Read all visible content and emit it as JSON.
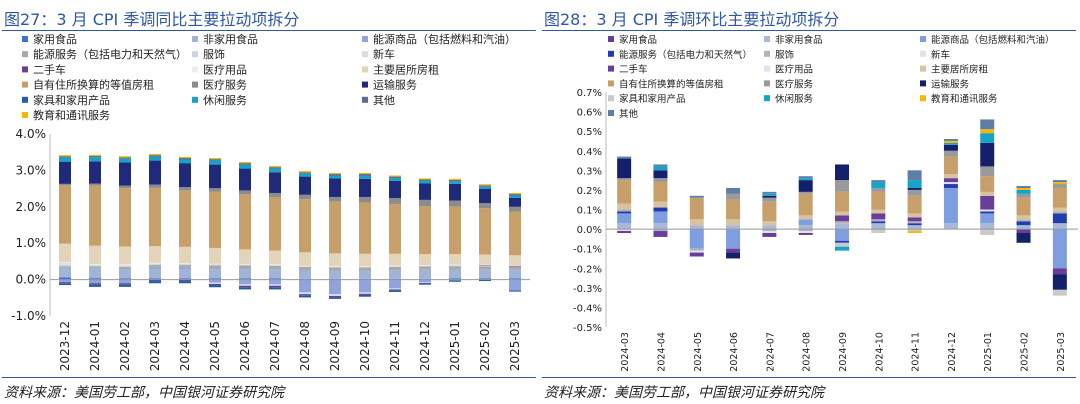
{
  "panels": [
    {
      "title": "图27：3 月 CPI 季调同比主要拉动项拆分",
      "source": "资料来源：美国劳工部，中国银河证券研究院"
    },
    {
      "title": "图28：3 月 CPI 季调环比主要拉动项拆分",
      "source": "资料来源：美国劳工部，中国银河证券研究院"
    }
  ],
  "chart_data": [
    {
      "type": "bar",
      "stacked": true,
      "title": "图27：3 月 CPI 季调同比主要拉动项拆分",
      "ylim": [
        -1.0,
        4.0
      ],
      "yticks": [
        "-1.0%",
        "0.0%",
        "1.0%",
        "2.0%",
        "3.0%",
        "4.0%"
      ],
      "legend_columns": 3,
      "categories": [
        "2023-12",
        "2024-01",
        "2024-02",
        "2024-03",
        "2024-04",
        "2024-05",
        "2024-06",
        "2024-07",
        "2024-08",
        "2024-09",
        "2024-10",
        "2024-11",
        "2024-12",
        "2025-01",
        "2025-02",
        "2025-03"
      ],
      "series": [
        {
          "name": "家用食品",
          "color": "#3a70d8",
          "values": [
            0.06,
            0.04,
            0.03,
            0.03,
            0.03,
            0.03,
            0.03,
            0.03,
            0.02,
            0.02,
            0.02,
            0.02,
            0.02,
            0.03,
            0.03,
            0.03
          ]
        },
        {
          "name": "非家用食品",
          "color": "#9fb4d7",
          "values": [
            0.27,
            0.27,
            0.26,
            0.25,
            0.25,
            0.26,
            0.26,
            0.25,
            0.23,
            0.23,
            0.23,
            0.24,
            0.25,
            0.24,
            0.24,
            0.24
          ]
        },
        {
          "name": "能源商品（包括燃料和汽油）",
          "color": "#8fa3de",
          "values": [
            -0.07,
            -0.1,
            -0.1,
            0.05,
            0.04,
            -0.08,
            -0.13,
            -0.13,
            -0.35,
            -0.4,
            -0.35,
            -0.24,
            -0.07,
            0.01,
            0.0,
            -0.3
          ]
        },
        {
          "name": "能源服务（包括电力和天然气）",
          "color": "#a9a9a9",
          "values": [
            0.04,
            0.05,
            0.06,
            0.07,
            0.08,
            0.1,
            0.1,
            0.1,
            0.1,
            0.09,
            0.09,
            0.09,
            0.09,
            0.09,
            0.09,
            0.08
          ]
        },
        {
          "name": "服饰",
          "color": "#c7d7eb",
          "values": [
            0.04,
            0.03,
            0.03,
            0.03,
            0.03,
            0.03,
            0.02,
            0.02,
            0.01,
            0.01,
            0.01,
            0.02,
            0.02,
            0.02,
            0.02,
            0.01
          ]
        },
        {
          "name": "新车",
          "color": "#dcdcdc",
          "values": [
            0.05,
            0.02,
            0.02,
            0.01,
            0.0,
            -0.04,
            -0.04,
            -0.04,
            -0.05,
            -0.05,
            -0.04,
            -0.03,
            -0.02,
            -0.02,
            -0.01,
            0.0
          ]
        },
        {
          "name": "二手车",
          "color": "#6a3d9a",
          "values": [
            -0.03,
            -0.04,
            -0.04,
            -0.04,
            -0.04,
            -0.03,
            -0.04,
            -0.04,
            -0.03,
            -0.03,
            -0.03,
            -0.02,
            -0.01,
            0.0,
            0.01,
            0.02
          ]
        },
        {
          "name": "医疗用品",
          "color": "#ececec",
          "values": [
            0.02,
            0.02,
            0.02,
            0.02,
            0.02,
            0.02,
            0.02,
            0.02,
            0.02,
            0.02,
            0.02,
            0.02,
            0.02,
            0.02,
            0.02,
            0.02
          ]
        },
        {
          "name": "主要居所房租",
          "color": "#e3d3b8",
          "values": [
            0.51,
            0.5,
            0.49,
            0.46,
            0.45,
            0.43,
            0.4,
            0.38,
            0.37,
            0.35,
            0.34,
            0.32,
            0.3,
            0.29,
            0.28,
            0.27
          ]
        },
        {
          "name": "自有住所换算的等值房租",
          "color": "#c79f6b",
          "values": [
            1.6,
            1.65,
            1.6,
            1.6,
            1.55,
            1.55,
            1.52,
            1.47,
            1.46,
            1.42,
            1.41,
            1.36,
            1.32,
            1.31,
            1.27,
            1.2
          ]
        },
        {
          "name": "医疗服务",
          "color": "#8c8c8c",
          "values": [
            0.04,
            0.06,
            0.07,
            0.09,
            0.09,
            0.09,
            0.1,
            0.11,
            0.12,
            0.13,
            0.15,
            0.17,
            0.17,
            0.16,
            0.14,
            0.13
          ]
        },
        {
          "name": "运输服务",
          "color": "#1f2a7a",
          "values": [
            0.61,
            0.61,
            0.64,
            0.66,
            0.66,
            0.65,
            0.6,
            0.57,
            0.5,
            0.51,
            0.5,
            0.47,
            0.45,
            0.46,
            0.39,
            0.25
          ]
        },
        {
          "name": "家具和家用产品",
          "color": "#1f5fa6",
          "values": [
            -0.05,
            -0.06,
            -0.06,
            -0.06,
            -0.06,
            -0.06,
            -0.06,
            -0.06,
            -0.06,
            -0.05,
            -0.05,
            -0.05,
            -0.04,
            -0.04,
            -0.03,
            -0.03
          ]
        },
        {
          "name": "休闲服务",
          "color": "#17a2c7",
          "values": [
            0.11,
            0.11,
            0.1,
            0.11,
            0.1,
            0.11,
            0.11,
            0.1,
            0.08,
            0.08,
            0.09,
            0.08,
            0.07,
            0.07,
            0.06,
            0.06
          ]
        },
        {
          "name": "其他",
          "color": "#5a6f90",
          "values": [
            0.04,
            0.04,
            0.04,
            0.04,
            0.04,
            0.04,
            0.04,
            0.04,
            0.04,
            0.04,
            0.04,
            0.04,
            0.04,
            0.04,
            0.04,
            0.04
          ]
        },
        {
          "name": "教育和通讯服务",
          "color": "#f5b800",
          "values": [
            0.03,
            0.03,
            0.03,
            0.03,
            0.03,
            0.03,
            0.03,
            0.03,
            0.03,
            0.03,
            0.03,
            0.03,
            0.03,
            0.03,
            0.03,
            0.03
          ]
        }
      ]
    },
    {
      "type": "bar",
      "stacked": true,
      "title": "图28：3 月 CPI 季调环比主要拉动项拆分",
      "ylim": [
        -0.5,
        0.7
      ],
      "yticks": [
        "-0.5%",
        "-0.4%",
        "-0.3%",
        "-0.2%",
        "-0.1%",
        "0.0%",
        "0.1%",
        "0.2%",
        "0.3%",
        "0.4%",
        "0.5%",
        "0.6%",
        "0.7%"
      ],
      "legend_columns": 3,
      "categories": [
        "2024-03",
        "2024-04",
        "2024-05",
        "2024-06",
        "2024-07",
        "2024-08",
        "2024-09",
        "2024-10",
        "2024-11",
        "2024-12",
        "2025-01",
        "2025-02",
        "2025-03"
      ],
      "series": [
        {
          "name": "家用食品",
          "color": "#6a3d9a",
          "values": [
            0.0,
            0.0,
            0.0,
            0.0,
            0.0,
            0.0,
            0.0,
            0.0,
            0.0,
            0.0,
            0.0,
            0.0,
            0.0
          ]
        },
        {
          "name": "非家用食品",
          "color": "#a9b8d6",
          "values": [
            0.03,
            0.03,
            0.02,
            0.02,
            0.02,
            0.02,
            0.03,
            0.03,
            0.02,
            0.03,
            0.03,
            0.02,
            0.03
          ]
        },
        {
          "name": "能源商品（包括燃料和汽油）",
          "color": "#7f9ee0",
          "values": [
            0.05,
            0.06,
            -0.1,
            -0.1,
            0.0,
            0.03,
            -0.06,
            0.0,
            0.0,
            0.18,
            0.05,
            0.0,
            -0.2
          ]
        },
        {
          "name": "能源服务（包括电力和天然气）",
          "color": "#1f3fb0",
          "values": [
            0.01,
            0.02,
            0.0,
            0.0,
            0.0,
            0.0,
            -0.01,
            0.01,
            0.01,
            0.02,
            0.01,
            0.02,
            0.05
          ]
        },
        {
          "name": "服饰",
          "color": "#b3b3b3",
          "values": [
            0.01,
            -0.01,
            -0.01,
            0.0,
            -0.01,
            -0.01,
            0.01,
            0.01,
            0.01,
            0.0,
            0.0,
            0.01,
            0.01
          ]
        },
        {
          "name": "新车",
          "color": "#e2e2e2",
          "values": [
            -0.01,
            0.0,
            -0.01,
            0.0,
            -0.01,
            -0.01,
            0.0,
            0.0,
            0.0,
            0.01,
            0.01,
            0.0,
            0.0
          ]
        },
        {
          "name": "二手车",
          "color": "#6a3d9a",
          "values": [
            -0.01,
            -0.03,
            -0.02,
            -0.02,
            -0.02,
            -0.01,
            0.03,
            0.03,
            0.02,
            0.02,
            0.07,
            -0.02,
            -0.03
          ]
        },
        {
          "name": "医疗用品",
          "color": "#dde3f0",
          "values": [
            0.0,
            0.0,
            0.0,
            0.0,
            0.0,
            0.0,
            0.0,
            0.0,
            0.0,
            0.0,
            0.0,
            0.0,
            0.0
          ]
        },
        {
          "name": "主要居所房租",
          "color": "#d8c3a0",
          "values": [
            0.03,
            0.03,
            0.03,
            0.03,
            0.02,
            0.02,
            0.02,
            0.02,
            0.02,
            0.02,
            0.02,
            0.02,
            0.02
          ]
        },
        {
          "name": "自有住所换算的等值房租",
          "color": "#c79f6b",
          "values": [
            0.12,
            0.1,
            0.11,
            0.1,
            0.1,
            0.11,
            0.1,
            0.09,
            0.09,
            0.09,
            0.08,
            0.09,
            0.1
          ]
        },
        {
          "name": "医疗服务",
          "color": "#9a9a9a",
          "values": [
            0.01,
            0.02,
            0.0,
            0.03,
            0.02,
            0.01,
            0.06,
            0.02,
            0.03,
            0.03,
            0.05,
            0.02,
            0.02
          ]
        },
        {
          "name": "运输服务",
          "color": "#14206b",
          "values": [
            0.1,
            0.04,
            0.0,
            -0.03,
            0.01,
            0.06,
            0.08,
            0.0,
            0.01,
            0.03,
            0.12,
            -0.05,
            -0.08
          ]
        },
        {
          "name": "家具和家用产品",
          "color": "#c9c9c9",
          "values": [
            0.0,
            0.0,
            0.0,
            0.0,
            0.0,
            0.0,
            -0.02,
            -0.02,
            -0.01,
            0.0,
            -0.03,
            0.0,
            -0.03
          ]
        },
        {
          "name": "休闲服务",
          "color": "#17a2c7",
          "values": [
            0.0,
            0.02,
            0.0,
            0.0,
            0.01,
            0.01,
            -0.02,
            0.03,
            0.04,
            0.01,
            0.05,
            0.02,
            0.0
          ]
        },
        {
          "name": "教育和通讯服务",
          "color": "#f5b800",
          "values": [
            0.0,
            0.0,
            0.0,
            0.0,
            0.0,
            0.0,
            0.0,
            0.0,
            -0.01,
            0.01,
            0.02,
            0.01,
            0.01
          ]
        },
        {
          "name": "其他",
          "color": "#5f7ea6",
          "values": [
            0.01,
            0.01,
            0.01,
            0.03,
            0.01,
            0.01,
            0.0,
            0.01,
            0.05,
            0.01,
            0.05,
            0.01,
            0.01
          ]
        }
      ]
    }
  ]
}
